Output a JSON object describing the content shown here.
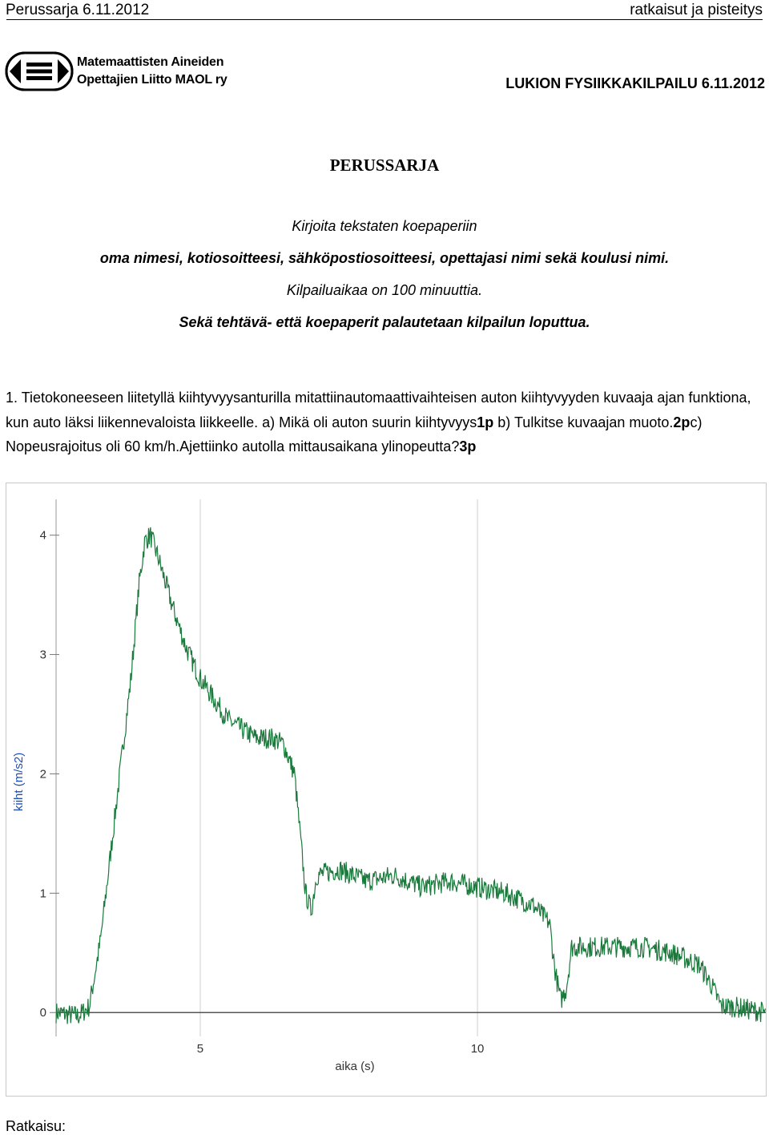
{
  "header": {
    "left": "Perussarja 6.11.2012",
    "right": "ratkaisut ja pisteitys"
  },
  "organization": {
    "line1": "Matemaattisten Aineiden",
    "line2": "Opettajien Liitto MAOL ry",
    "logo_icon": "maol-logo-icon"
  },
  "contest": "LUKION FYSIIKKAKILPAILU 6.11.2012",
  "series_title": "PERUSSARJA",
  "instructions": [
    "Kirjoita tekstaten koepaperiin",
    "oma nimesi, kotiosoitteesi, sähköpostiosoitteesi, opettajasi nimi sekä koulusi nimi.",
    "Kilpailuaikaa on 100 minuuttia.",
    "Sekä tehtävä- että koepaperit palautetaan kilpailun loputtua."
  ],
  "task": {
    "text_a": "1. Tietokoneeseen liitetyllä kiihtyvyysanturilla  mitattiinautomaattivaihteisen auton kiihtyvyyden kuvaaja ajan funktiona, kun auto läksi liikennevaloista liikkeelle. a) Mikä oli auton suurin kiihtyvyys",
    "pts_a": "1p",
    "text_b": " b) Tulkitse kuvaajan muoto.",
    "pts_b": "2p",
    "text_c": "c) Nopeusrajoitus oli 60 km/h.Ajettiinko autolla mittausaikana ylinopeutta?",
    "pts_c": "3p"
  },
  "answer_label": "Ratkaisu:",
  "chart_data": {
    "type": "line",
    "xlabel": "aika (s)",
    "ylabel": "kiiht (m/s2)",
    "xlim": [
      2.4,
      15.2
    ],
    "ylim": [
      -0.2,
      4.3
    ],
    "xticks": [
      5,
      10
    ],
    "yticks": [
      0,
      1,
      2,
      3,
      4
    ],
    "line_color": "#1a7a3c",
    "series": [
      {
        "x": [
          2.4,
          2.8,
          3.0,
          3.2,
          3.4,
          3.6,
          3.75,
          3.9,
          4.0,
          4.1,
          4.25,
          4.5,
          4.75,
          5.0,
          5.5,
          6.0,
          6.3,
          6.5,
          6.7,
          6.8,
          6.9,
          7.0,
          7.1,
          7.5,
          8.0,
          8.5,
          9.0,
          9.5,
          10.0,
          10.5,
          11.0,
          11.3,
          11.4,
          11.5,
          11.6,
          11.7,
          12.0,
          12.5,
          13.0,
          13.5,
          14.0,
          14.2,
          14.4,
          14.6,
          15.2
        ],
        "y": [
          0.0,
          -0.03,
          0.05,
          0.6,
          1.4,
          2.2,
          2.8,
          3.6,
          3.95,
          4.0,
          3.8,
          3.4,
          3.05,
          2.8,
          2.45,
          2.3,
          2.3,
          2.25,
          2.0,
          1.5,
          1.0,
          0.85,
          1.15,
          1.2,
          1.1,
          1.15,
          1.05,
          1.1,
          1.05,
          1.0,
          0.9,
          0.75,
          0.35,
          0.1,
          0.2,
          0.55,
          0.55,
          0.55,
          0.55,
          0.5,
          0.4,
          0.25,
          0.05,
          0.05,
          0.0
        ]
      }
    ]
  }
}
